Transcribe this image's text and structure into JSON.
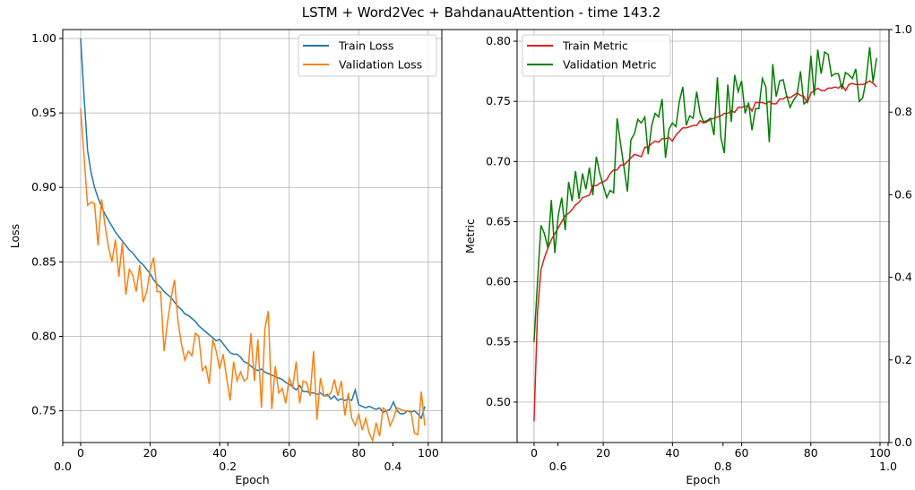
{
  "chart_data": {
    "title": "LSTM + Word2Vec + BahdanauAttention - time 143.2",
    "background_axes": {
      "xlim": [
        0,
        1
      ],
      "ylim": [
        0,
        1
      ],
      "xticks": [
        "0.0",
        "0.2",
        "0.4",
        "0.6",
        "0.8",
        "1.0"
      ],
      "yticks": [
        "0.0",
        "0.2",
        "0.4",
        "0.6",
        "0.8",
        "1.0"
      ]
    },
    "charts": [
      {
        "type": "line",
        "xlabel": "Epoch",
        "ylabel": "Loss",
        "xlim": [
          -5.15,
          103.9
        ],
        "ylim": [
          0.7287,
          1.006
        ],
        "xticks": [
          0,
          20,
          40,
          60,
          80,
          100
        ],
        "yticks": [
          "0.75",
          "0.80",
          "0.85",
          "0.90",
          "0.95",
          "1.00"
        ],
        "grid": true,
        "legend": "top-right",
        "series": [
          {
            "name": "Train Loss",
            "color": "#1f77b4",
            "values": [
              1.0,
              0.96,
              0.925,
              0.91,
              0.9,
              0.893,
              0.887,
              0.882,
              0.878,
              0.874,
              0.87,
              0.867,
              0.864,
              0.861,
              0.858,
              0.856,
              0.853,
              0.85,
              0.848,
              0.845,
              0.842,
              0.838,
              0.835,
              0.833,
              0.83,
              0.828,
              0.826,
              0.823,
              0.82,
              0.818,
              0.815,
              0.814,
              0.812,
              0.81,
              0.807,
              0.805,
              0.803,
              0.801,
              0.799,
              0.797,
              0.798,
              0.795,
              0.792,
              0.789,
              0.788,
              0.788,
              0.786,
              0.783,
              0.782,
              0.78,
              0.778,
              0.777,
              0.778,
              0.776,
              0.775,
              0.774,
              0.773,
              0.772,
              0.771,
              0.769,
              0.768,
              0.766,
              0.764,
              0.767,
              0.763,
              0.763,
              0.762,
              0.762,
              0.761,
              0.762,
              0.76,
              0.761,
              0.758,
              0.76,
              0.757,
              0.758,
              0.757,
              0.758,
              0.757,
              0.764,
              0.754,
              0.753,
              0.752,
              0.753,
              0.752,
              0.751,
              0.752,
              0.749,
              0.75,
              0.751,
              0.756,
              0.75,
              0.748,
              0.748,
              0.75,
              0.749,
              0.75,
              0.748,
              0.745,
              0.753
            ]
          },
          {
            "name": "Validation Loss",
            "color": "#ff7f0e",
            "values": [
              0.953,
              0.92,
              0.888,
              0.89,
              0.889,
              0.861,
              0.892,
              0.875,
              0.86,
              0.85,
              0.865,
              0.84,
              0.863,
              0.828,
              0.845,
              0.841,
              0.83,
              0.848,
              0.823,
              0.83,
              0.845,
              0.853,
              0.83,
              0.83,
              0.79,
              0.81,
              0.825,
              0.838,
              0.81,
              0.795,
              0.784,
              0.79,
              0.787,
              0.802,
              0.8,
              0.777,
              0.78,
              0.768,
              0.798,
              0.79,
              0.778,
              0.788,
              0.772,
              0.757,
              0.783,
              0.77,
              0.776,
              0.77,
              0.772,
              0.802,
              0.77,
              0.798,
              0.752,
              0.805,
              0.817,
              0.751,
              0.78,
              0.762,
              0.765,
              0.755,
              0.772,
              0.766,
              0.783,
              0.755,
              0.77,
              0.769,
              0.76,
              0.79,
              0.744,
              0.772,
              0.76,
              0.76,
              0.762,
              0.771,
              0.76,
              0.77,
              0.747,
              0.762,
              0.745,
              0.74,
              0.748,
              0.737,
              0.745,
              0.735,
              0.73,
              0.742,
              0.733,
              0.752,
              0.75,
              0.74,
              0.745,
              0.752,
              0.751,
              0.75,
              0.75,
              0.75,
              0.735,
              0.734,
              0.763,
              0.74
            ]
          }
        ]
      },
      {
        "type": "line",
        "xlabel": "Epoch",
        "ylabel": "Metric",
        "xlim": [
          -4.9,
          102.6
        ],
        "ylim": [
          0.4664,
          0.8097
        ],
        "xticks": [
          0,
          20,
          40,
          60,
          80,
          100
        ],
        "yticks": [
          "0.50",
          "0.55",
          "0.60",
          "0.65",
          "0.70",
          "0.75",
          "0.80"
        ],
        "grid": true,
        "legend": "top-left",
        "series": [
          {
            "name": "Train Metric",
            "color": "#e41a1c",
            "values": [
              0.484,
              0.575,
              0.61,
              0.62,
              0.628,
              0.635,
              0.64,
              0.645,
              0.65,
              0.655,
              0.657,
              0.66,
              0.664,
              0.666,
              0.67,
              0.671,
              0.672,
              0.68,
              0.68,
              0.682,
              0.683,
              0.685,
              0.69,
              0.693,
              0.693,
              0.697,
              0.697,
              0.7,
              0.703,
              0.706,
              0.705,
              0.704,
              0.712,
              0.712,
              0.715,
              0.717,
              0.716,
              0.719,
              0.719,
              0.72,
              0.717,
              0.722,
              0.725,
              0.728,
              0.728,
              0.729,
              0.73,
              0.73,
              0.734,
              0.732,
              0.733,
              0.735,
              0.736,
              0.737,
              0.738,
              0.74,
              0.74,
              0.742,
              0.741,
              0.745,
              0.745,
              0.746,
              0.746,
              0.742,
              0.749,
              0.749,
              0.749,
              0.748,
              0.75,
              0.748,
              0.748,
              0.752,
              0.752,
              0.754,
              0.753,
              0.755,
              0.757,
              0.755,
              0.754,
              0.749,
              0.757,
              0.759,
              0.761,
              0.759,
              0.759,
              0.761,
              0.761,
              0.762,
              0.761,
              0.764,
              0.759,
              0.764,
              0.765,
              0.764,
              0.764,
              0.764,
              0.765,
              0.767,
              0.765,
              0.762
            ]
          },
          {
            "name": "Validation Metric",
            "color": "#008000",
            "values": [
              0.55,
              0.6,
              0.647,
              0.64,
              0.628,
              0.668,
              0.624,
              0.655,
              0.67,
              0.643,
              0.683,
              0.667,
              0.692,
              0.669,
              0.69,
              0.677,
              0.695,
              0.672,
              0.704,
              0.69,
              0.68,
              0.67,
              0.676,
              0.674,
              0.736,
              0.715,
              0.695,
              0.675,
              0.718,
              0.723,
              0.735,
              0.732,
              0.737,
              0.706,
              0.73,
              0.74,
              0.737,
              0.752,
              0.703,
              0.727,
              0.732,
              0.729,
              0.75,
              0.762,
              0.73,
              0.738,
              0.736,
              0.758,
              0.74,
              0.733,
              0.734,
              0.736,
              0.722,
              0.77,
              0.72,
              0.707,
              0.764,
              0.733,
              0.772,
              0.758,
              0.767,
              0.74,
              0.749,
              0.726,
              0.744,
              0.744,
              0.769,
              0.762,
              0.716,
              0.781,
              0.754,
              0.767,
              0.768,
              0.755,
              0.745,
              0.751,
              0.755,
              0.775,
              0.748,
              0.75,
              0.788,
              0.755,
              0.793,
              0.773,
              0.791,
              0.789,
              0.771,
              0.773,
              0.773,
              0.76,
              0.774,
              0.772,
              0.769,
              0.777,
              0.75,
              0.753,
              0.768,
              0.795,
              0.766,
              0.786
            ]
          }
        ]
      }
    ]
  }
}
